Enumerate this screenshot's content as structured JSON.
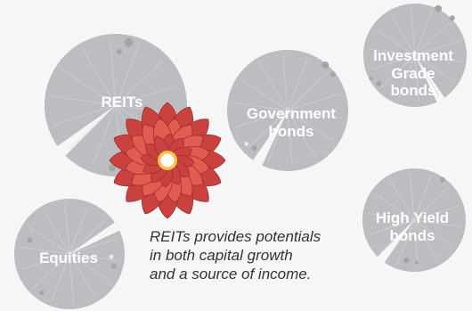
{
  "pads": [
    {
      "id": "reits",
      "lines": [
        "REITs"
      ]
    },
    {
      "id": "government-bonds",
      "lines": [
        "Government",
        "bonds"
      ]
    },
    {
      "id": "investment-grade-bonds",
      "lines": [
        "Investment",
        "Grade",
        "bonds"
      ]
    },
    {
      "id": "high-yield-bonds",
      "lines": [
        "High Yield",
        "bonds"
      ]
    },
    {
      "id": "equities",
      "lines": [
        "Equities"
      ]
    }
  ],
  "caption": {
    "lines": [
      "REITs provides potentials",
      "in both capital growth",
      "and a source of income."
    ]
  },
  "colors": {
    "background": "#f6f6f6",
    "pad": "#bcbdc0",
    "vein": "#d6d7d9",
    "dot": "#a4a5a8",
    "label": "#ffffff",
    "caption": "#333333",
    "flower_outer": "#c9423f",
    "flower_inner": "#e35c52",
    "flower_edge": "#9e2f2c",
    "flower_center": "#ffffff",
    "flower_ring": "#f3c24d"
  },
  "icons": [
    "lily-pad-icon",
    "lotus-flower-icon"
  ]
}
